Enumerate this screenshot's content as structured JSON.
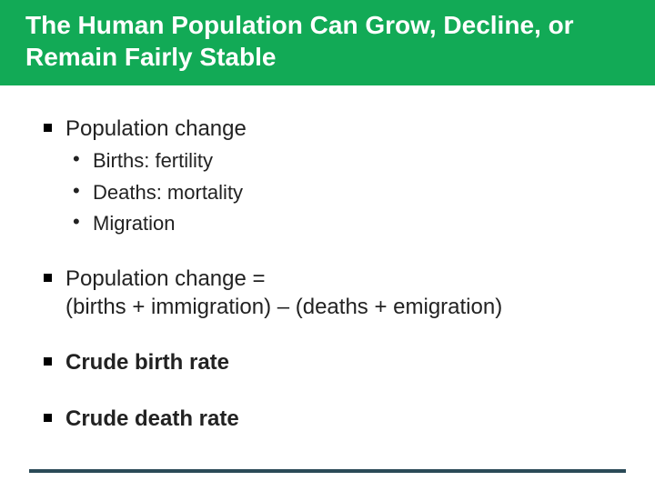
{
  "colors": {
    "header_bg": "#12aa56",
    "header_text": "#ffffff",
    "body_text": "#222222",
    "divider": "#2b4a57",
    "background": "#ffffff"
  },
  "typography": {
    "title_fontsize": 28,
    "bullet_fontsize": 24,
    "sub_bullet_fontsize": 22,
    "font_family": "Arial"
  },
  "header": {
    "title": "The Human Population Can Grow, Decline, or Remain Fairly Stable"
  },
  "bullets": [
    {
      "text": "Population change",
      "bold": false,
      "sub": [
        "Births: fertility",
        "Deaths: mortality",
        "Migration"
      ]
    },
    {
      "text": "Population change =",
      "bold": false,
      "continuation": "(births + immigration) – (deaths + emigration)"
    },
    {
      "text": "Crude birth rate",
      "bold": true
    },
    {
      "text": "Crude death rate",
      "bold": true
    }
  ]
}
